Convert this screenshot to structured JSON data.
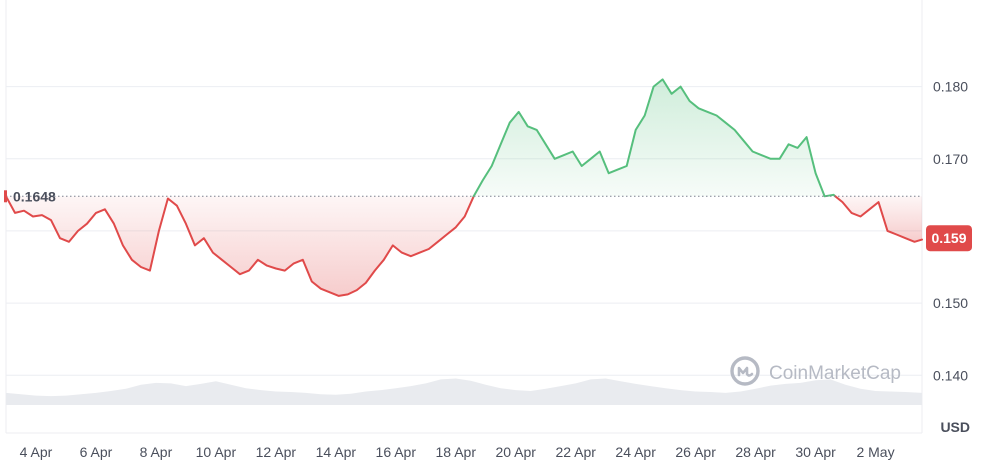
{
  "chart_data": {
    "type": "area",
    "reference_value": 0.1648,
    "reference_label": "0.1648",
    "current_price_label": "0.159",
    "current_price": 0.159,
    "unit_label": "USD",
    "watermark": "CoinMarketCap",
    "ylim": [
      0.132,
      0.192
    ],
    "y_ticks": [
      {
        "value": 0.14,
        "label": "0.140"
      },
      {
        "value": 0.15,
        "label": "0.150"
      },
      {
        "value": 0.16,
        "label": "0.160"
      },
      {
        "value": 0.17,
        "label": "0.170"
      },
      {
        "value": 0.18,
        "label": "0.180"
      }
    ],
    "x_range_days": [
      3.0,
      33.55
    ],
    "x_ticks": [
      {
        "value": 4,
        "label": "4 Apr"
      },
      {
        "value": 6,
        "label": "6 Apr"
      },
      {
        "value": 8,
        "label": "8 Apr"
      },
      {
        "value": 10,
        "label": "10 Apr"
      },
      {
        "value": 12,
        "label": "12 Apr"
      },
      {
        "value": 14,
        "label": "14 Apr"
      },
      {
        "value": 16,
        "label": "16 Apr"
      },
      {
        "value": 18,
        "label": "18 Apr"
      },
      {
        "value": 20,
        "label": "20 Apr"
      },
      {
        "value": 22,
        "label": "22 Apr"
      },
      {
        "value": 24,
        "label": "24 Apr"
      },
      {
        "value": 26,
        "label": "26 Apr"
      },
      {
        "value": 28,
        "label": "28 Apr"
      },
      {
        "value": 30,
        "label": "30 Apr"
      },
      {
        "value": 32,
        "label": "2 May"
      }
    ],
    "price_x": [
      3.0,
      3.3,
      3.6,
      3.9,
      4.2,
      4.5,
      4.8,
      5.1,
      5.4,
      5.7,
      6.0,
      6.3,
      6.6,
      6.9,
      7.2,
      7.5,
      7.8,
      8.1,
      8.4,
      8.7,
      9.0,
      9.3,
      9.6,
      9.9,
      10.2,
      10.5,
      10.8,
      11.1,
      11.4,
      11.7,
      12.0,
      12.3,
      12.6,
      12.9,
      13.2,
      13.5,
      13.8,
      14.1,
      14.4,
      14.7,
      15.0,
      15.3,
      15.6,
      15.9,
      16.2,
      16.5,
      16.8,
      17.1,
      17.4,
      17.7,
      18.0,
      18.3,
      18.6,
      18.9,
      19.2,
      19.5,
      19.8,
      20.1,
      20.4,
      20.7,
      21.0,
      21.3,
      21.6,
      21.9,
      22.2,
      22.5,
      22.8,
      23.1,
      23.4,
      23.7,
      24.0,
      24.3,
      24.6,
      24.9,
      25.2,
      25.5,
      25.8,
      26.1,
      26.4,
      26.7,
      27.0,
      27.3,
      27.6,
      27.9,
      28.2,
      28.5,
      28.8,
      29.1,
      29.4,
      29.7,
      30.0,
      30.3,
      30.6,
      30.9,
      31.2,
      31.5,
      31.8,
      32.1,
      32.4,
      32.7,
      33.0,
      33.3,
      33.55
    ],
    "price_y": [
      0.1648,
      0.1625,
      0.1628,
      0.162,
      0.1622,
      0.1615,
      0.159,
      0.1585,
      0.16,
      0.161,
      0.1625,
      0.163,
      0.161,
      0.158,
      0.156,
      0.155,
      0.1545,
      0.16,
      0.1645,
      0.1635,
      0.161,
      0.158,
      0.159,
      0.157,
      0.156,
      0.155,
      0.154,
      0.1545,
      0.156,
      0.1552,
      0.1548,
      0.1545,
      0.1555,
      0.156,
      0.153,
      0.152,
      0.1515,
      0.151,
      0.1512,
      0.1518,
      0.1528,
      0.1545,
      0.156,
      0.158,
      0.157,
      0.1565,
      0.157,
      0.1575,
      0.1585,
      0.1595,
      0.1605,
      0.162,
      0.1648,
      0.167,
      0.169,
      0.172,
      0.175,
      0.1765,
      0.1745,
      0.174,
      0.172,
      0.17,
      0.1705,
      0.171,
      0.169,
      0.17,
      0.171,
      0.168,
      0.1685,
      0.169,
      0.174,
      0.176,
      0.18,
      0.181,
      0.179,
      0.18,
      0.178,
      0.177,
      0.1765,
      0.176,
      0.175,
      0.174,
      0.1725,
      0.171,
      0.1705,
      0.17,
      0.17,
      0.172,
      0.1715,
      0.173,
      0.168,
      0.1648,
      0.165,
      0.164,
      0.1625,
      0.162,
      0.163,
      0.164,
      0.16,
      0.1595,
      0.159,
      0.1585,
      0.1588,
      0.1595,
      0.161,
      0.16,
      0.1595,
      0.159,
      0.159
    ],
    "volume_x": [
      3.0,
      3.5,
      4.0,
      4.5,
      5.0,
      5.5,
      6.0,
      6.5,
      7.0,
      7.5,
      8.0,
      8.5,
      9.0,
      9.5,
      10.0,
      10.5,
      11.0,
      11.5,
      12.0,
      12.5,
      13.0,
      13.5,
      14.0,
      14.5,
      15.0,
      15.5,
      16.0,
      16.5,
      17.0,
      17.5,
      18.0,
      18.5,
      19.0,
      19.5,
      20.0,
      20.5,
      21.0,
      21.5,
      22.0,
      22.5,
      23.0,
      23.5,
      24.0,
      24.5,
      25.0,
      25.5,
      26.0,
      26.5,
      27.0,
      27.5,
      28.0,
      28.5,
      29.0,
      29.5,
      30.0,
      30.5,
      31.0,
      31.5,
      32.0,
      32.5,
      33.0,
      33.55
    ],
    "volume_rel": [
      0.45,
      0.4,
      0.35,
      0.33,
      0.35,
      0.4,
      0.45,
      0.52,
      0.6,
      0.75,
      0.82,
      0.8,
      0.7,
      0.78,
      0.88,
      0.75,
      0.62,
      0.55,
      0.5,
      0.48,
      0.45,
      0.4,
      0.38,
      0.42,
      0.5,
      0.55,
      0.62,
      0.7,
      0.8,
      0.95,
      0.98,
      0.9,
      0.75,
      0.62,
      0.55,
      0.52,
      0.6,
      0.7,
      0.8,
      0.95,
      0.98,
      0.88,
      0.78,
      0.7,
      0.62,
      0.55,
      0.5,
      0.48,
      0.45,
      0.5,
      0.6,
      0.72,
      0.78,
      0.82,
      0.92,
      0.95,
      0.75,
      0.6,
      0.52,
      0.5,
      0.48,
      0.45
    ]
  },
  "colors": {
    "up": "#56bf7d",
    "down": "#e04a4a",
    "up_fill": "#56bf7d",
    "down_fill": "#e04a4a",
    "grid": "#eceef2",
    "volume": "#e9ebef",
    "ref_line": "#7d8290"
  }
}
